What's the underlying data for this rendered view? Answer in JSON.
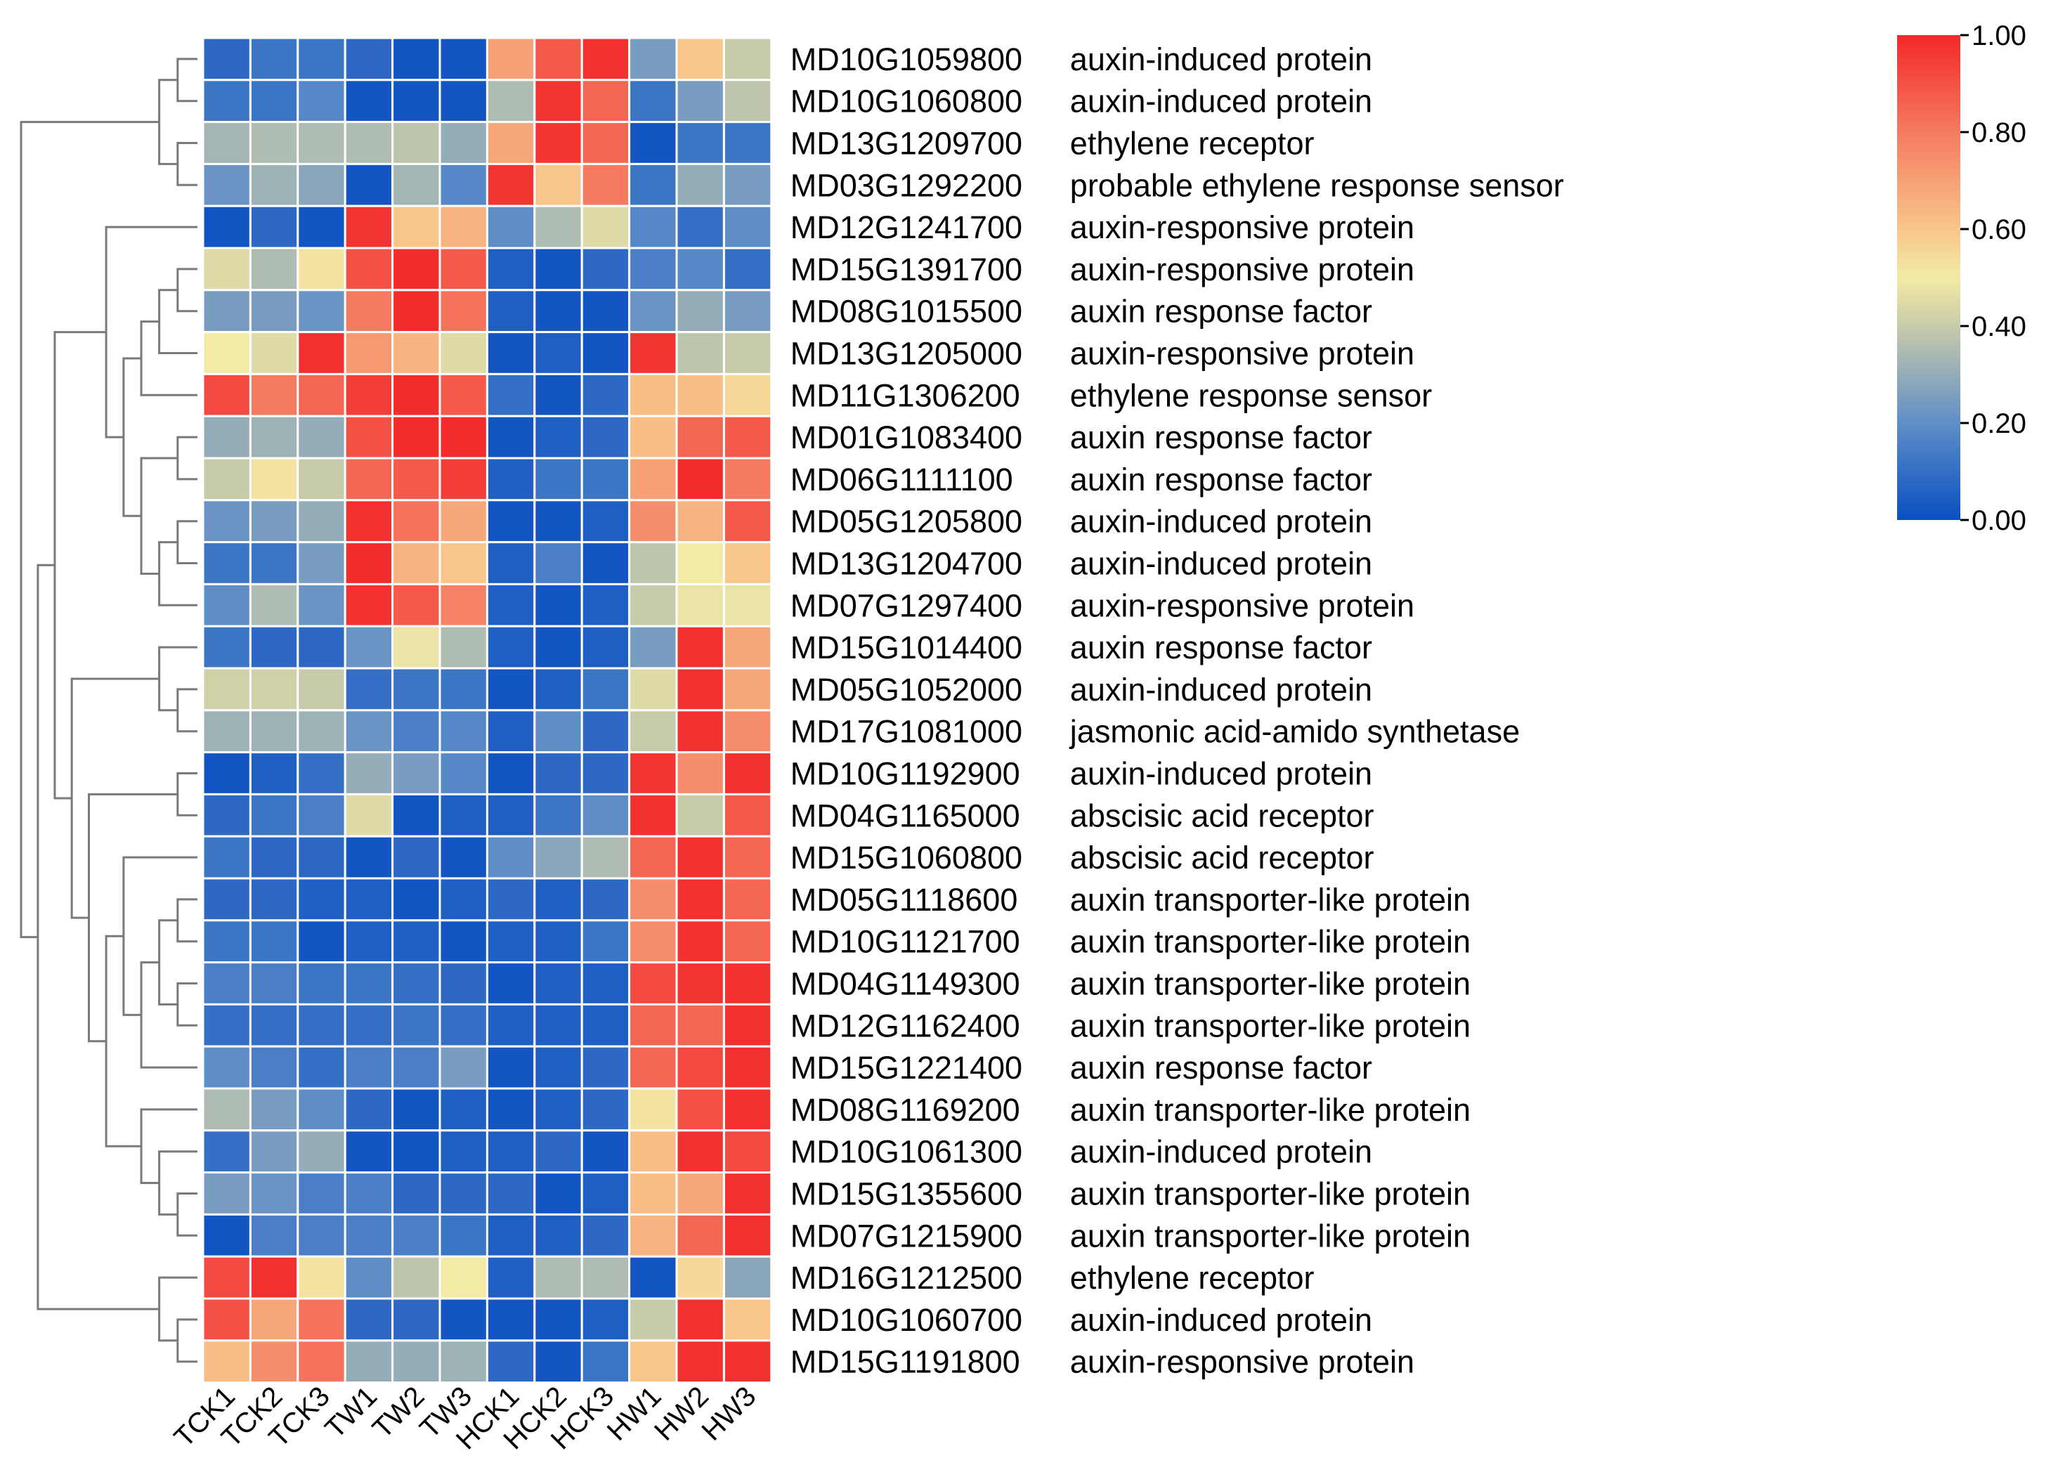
{
  "chart_data": {
    "type": "heatmap",
    "columns": [
      "TCK1",
      "TCK2",
      "TCK3",
      "TW1",
      "TW2",
      "TW3",
      "HCK1",
      "HCK2",
      "HCK3",
      "HW1",
      "HW2",
      "HW3"
    ],
    "rows": [
      {
        "gene": "MD10G1059800",
        "desc": "auxin-induced protein",
        "values": [
          0.08,
          0.12,
          0.12,
          0.08,
          0.02,
          0.02,
          0.7,
          0.88,
          0.98,
          0.25,
          0.6,
          0.4
        ]
      },
      {
        "gene": "MD10G1060800",
        "desc": "auxin-induced protein",
        "values": [
          0.12,
          0.12,
          0.18,
          0.02,
          0.02,
          0.02,
          0.35,
          0.97,
          0.85,
          0.12,
          0.25,
          0.38
        ]
      },
      {
        "gene": "MD13G1209700",
        "desc": "ethylene receptor",
        "values": [
          0.33,
          0.35,
          0.35,
          0.35,
          0.38,
          0.3,
          0.68,
          0.97,
          0.85,
          0.02,
          0.12,
          0.12
        ]
      },
      {
        "gene": "MD03G1292200",
        "desc": "probable ethylene response sensor",
        "values": [
          0.22,
          0.32,
          0.28,
          0.02,
          0.33,
          0.18,
          0.97,
          0.6,
          0.8,
          0.12,
          0.3,
          0.25
        ]
      },
      {
        "gene": "MD12G1241700",
        "desc": "auxin-responsive protein",
        "values": [
          0.02,
          0.08,
          0.02,
          0.97,
          0.6,
          0.65,
          0.2,
          0.35,
          0.45,
          0.18,
          0.1,
          0.2
        ]
      },
      {
        "gene": "MD15G1391700",
        "desc": "auxin-responsive protein",
        "values": [
          0.45,
          0.35,
          0.52,
          0.9,
          0.99,
          0.88,
          0.05,
          0.02,
          0.08,
          0.15,
          0.18,
          0.1
        ]
      },
      {
        "gene": "MD08G1015500",
        "desc": "auxin response factor",
        "values": [
          0.25,
          0.25,
          0.22,
          0.8,
          0.99,
          0.82,
          0.05,
          0.02,
          0.02,
          0.22,
          0.3,
          0.25
        ]
      },
      {
        "gene": "MD13G1205000",
        "desc": "auxin-responsive protein",
        "values": [
          0.5,
          0.45,
          0.98,
          0.72,
          0.65,
          0.45,
          0.02,
          0.05,
          0.02,
          0.97,
          0.38,
          0.4
        ]
      },
      {
        "gene": "MD11G1306200",
        "desc": "ethylene response sensor",
        "values": [
          0.92,
          0.8,
          0.85,
          0.95,
          0.99,
          0.88,
          0.1,
          0.02,
          0.08,
          0.62,
          0.62,
          0.55
        ]
      },
      {
        "gene": "MD01G1083400",
        "desc": "auxin response factor",
        "values": [
          0.3,
          0.32,
          0.3,
          0.9,
          0.99,
          0.99,
          0.02,
          0.05,
          0.08,
          0.62,
          0.85,
          0.88
        ]
      },
      {
        "gene": "MD06G1111100",
        "desc": "auxin response factor",
        "values": [
          0.4,
          0.52,
          0.4,
          0.85,
          0.88,
          0.95,
          0.05,
          0.12,
          0.12,
          0.7,
          0.99,
          0.8
        ]
      },
      {
        "gene": "MD05G1205800",
        "desc": "auxin-induced protein",
        "values": [
          0.22,
          0.25,
          0.3,
          0.98,
          0.82,
          0.68,
          0.02,
          0.02,
          0.05,
          0.75,
          0.65,
          0.88
        ]
      },
      {
        "gene": "MD13G1204700",
        "desc": "auxin-induced protein",
        "values": [
          0.12,
          0.12,
          0.25,
          0.99,
          0.65,
          0.6,
          0.05,
          0.15,
          0.02,
          0.38,
          0.5,
          0.6
        ]
      },
      {
        "gene": "MD07G1297400",
        "desc": "auxin-responsive protein",
        "values": [
          0.2,
          0.35,
          0.22,
          0.98,
          0.88,
          0.78,
          0.05,
          0.02,
          0.05,
          0.4,
          0.48,
          0.48
        ]
      },
      {
        "gene": "MD15G1014400",
        "desc": "auxin response factor",
        "values": [
          0.12,
          0.08,
          0.08,
          0.22,
          0.48,
          0.35,
          0.05,
          0.02,
          0.05,
          0.25,
          0.98,
          0.68
        ]
      },
      {
        "gene": "MD05G1052000",
        "desc": "auxin-induced protein",
        "values": [
          0.42,
          0.42,
          0.4,
          0.1,
          0.12,
          0.12,
          0.02,
          0.05,
          0.12,
          0.45,
          0.98,
          0.68
        ]
      },
      {
        "gene": "MD17G1081000",
        "desc": "jasmonic acid-amido synthetase",
        "values": [
          0.32,
          0.32,
          0.32,
          0.22,
          0.15,
          0.18,
          0.05,
          0.2,
          0.08,
          0.4,
          0.98,
          0.75
        ]
      },
      {
        "gene": "MD10G1192900",
        "desc": "auxin-induced protein",
        "values": [
          0.02,
          0.05,
          0.1,
          0.3,
          0.25,
          0.18,
          0.02,
          0.08,
          0.08,
          0.97,
          0.75,
          0.98
        ]
      },
      {
        "gene": "MD04G1165000",
        "desc": "abscisic acid receptor",
        "values": [
          0.08,
          0.12,
          0.15,
          0.45,
          0.02,
          0.05,
          0.05,
          0.12,
          0.2,
          0.98,
          0.4,
          0.88
        ]
      },
      {
        "gene": "MD15G1060800",
        "desc": "abscisic acid receptor",
        "values": [
          0.12,
          0.08,
          0.08,
          0.02,
          0.08,
          0.02,
          0.2,
          0.28,
          0.35,
          0.85,
          0.98,
          0.85
        ]
      },
      {
        "gene": "MD05G1118600",
        "desc": "auxin transporter-like protein",
        "values": [
          0.08,
          0.08,
          0.05,
          0.05,
          0.02,
          0.05,
          0.08,
          0.05,
          0.08,
          0.75,
          0.98,
          0.85
        ]
      },
      {
        "gene": "MD10G1121700",
        "desc": "auxin transporter-like protein",
        "values": [
          0.12,
          0.12,
          0.02,
          0.05,
          0.05,
          0.02,
          0.05,
          0.05,
          0.12,
          0.75,
          0.98,
          0.85
        ]
      },
      {
        "gene": "MD04G1149300",
        "desc": "auxin transporter-like protein",
        "values": [
          0.15,
          0.15,
          0.12,
          0.12,
          0.1,
          0.08,
          0.02,
          0.05,
          0.05,
          0.92,
          0.97,
          0.98
        ]
      },
      {
        "gene": "MD12G1162400",
        "desc": "auxin transporter-like protein",
        "values": [
          0.1,
          0.1,
          0.1,
          0.1,
          0.12,
          0.1,
          0.05,
          0.05,
          0.05,
          0.85,
          0.85,
          0.98
        ]
      },
      {
        "gene": "MD15G1221400",
        "desc": "auxin response factor",
        "values": [
          0.2,
          0.15,
          0.1,
          0.15,
          0.15,
          0.25,
          0.02,
          0.05,
          0.08,
          0.85,
          0.92,
          0.98
        ]
      },
      {
        "gene": "MD08G1169200",
        "desc": "auxin transporter-like protein",
        "values": [
          0.35,
          0.25,
          0.2,
          0.08,
          0.02,
          0.05,
          0.02,
          0.05,
          0.08,
          0.52,
          0.9,
          0.98
        ]
      },
      {
        "gene": "MD10G1061300",
        "desc": "auxin-induced protein",
        "values": [
          0.1,
          0.25,
          0.3,
          0.02,
          0.02,
          0.05,
          0.05,
          0.08,
          0.02,
          0.62,
          0.98,
          0.92
        ]
      },
      {
        "gene": "MD15G1355600",
        "desc": "auxin transporter-like protein",
        "values": [
          0.25,
          0.22,
          0.15,
          0.15,
          0.08,
          0.08,
          0.08,
          0.02,
          0.05,
          0.62,
          0.68,
          0.98
        ]
      },
      {
        "gene": "MD07G1215900",
        "desc": "auxin transporter-like protein",
        "values": [
          0.02,
          0.15,
          0.15,
          0.15,
          0.15,
          0.12,
          0.05,
          0.05,
          0.08,
          0.65,
          0.85,
          0.98
        ]
      },
      {
        "gene": "MD16G1212500",
        "desc": "ethylene receptor",
        "values": [
          0.92,
          0.98,
          0.52,
          0.2,
          0.38,
          0.5,
          0.05,
          0.35,
          0.35,
          0.02,
          0.55,
          0.28
        ]
      },
      {
        "gene": "MD10G1060700",
        "desc": "auxin-induced protein",
        "values": [
          0.9,
          0.68,
          0.82,
          0.08,
          0.08,
          0.02,
          0.02,
          0.02,
          0.05,
          0.4,
          0.98,
          0.6
        ]
      },
      {
        "gene": "MD15G1191800",
        "desc": "auxin-responsive protein",
        "values": [
          0.62,
          0.75,
          0.82,
          0.3,
          0.3,
          0.32,
          0.08,
          0.02,
          0.12,
          0.6,
          0.98,
          0.98
        ]
      }
    ],
    "colorbar": {
      "min": 0,
      "max": 1,
      "ticks": [
        "0.00",
        "0.20",
        "0.40",
        "0.60",
        "0.80",
        "1.00"
      ],
      "stops": [
        {
          "v": 0.0,
          "color": "#0a4fc2"
        },
        {
          "v": 0.2,
          "color": "#5f8ec7"
        },
        {
          "v": 0.4,
          "color": "#c8cbaa"
        },
        {
          "v": 0.5,
          "color": "#f3eaa6"
        },
        {
          "v": 0.6,
          "color": "#f8c68a"
        },
        {
          "v": 0.8,
          "color": "#f57a62"
        },
        {
          "v": 1.0,
          "color": "#f2282a"
        }
      ]
    },
    "dendrogram_merges": [
      [
        0,
        1
      ],
      [
        2,
        3
      ],
      [
        -1,
        -2
      ],
      [
        5,
        6
      ],
      [
        -4,
        7
      ],
      [
        -5,
        8
      ],
      [
        9,
        10
      ],
      [
        11,
        12
      ],
      [
        -8,
        13
      ],
      [
        -7,
        -9
      ],
      [
        -6,
        -10
      ],
      [
        4,
        -11
      ],
      [
        15,
        16
      ],
      [
        14,
        -13
      ],
      [
        17,
        18
      ],
      [
        20,
        21
      ],
      [
        22,
        23
      ],
      [
        -16,
        -17
      ],
      [
        -18,
        24
      ],
      [
        -19,
        19
      ],
      [
        27,
        28
      ],
      [
        26,
        -21
      ],
      [
        25,
        -22
      ],
      [
        -20,
        -23
      ],
      [
        -15,
        -24
      ],
      [
        -14,
        -25
      ],
      [
        -12,
        -26
      ],
      [
        30,
        31
      ],
      [
        29,
        -28
      ],
      [
        -27,
        -29
      ],
      [
        -3,
        -30
      ]
    ]
  }
}
